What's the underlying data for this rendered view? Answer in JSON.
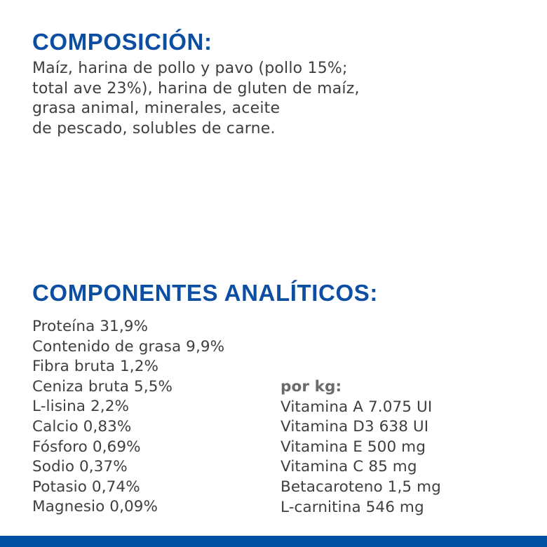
{
  "composicion": {
    "title": "COMPOSICIÓN:",
    "lines": [
      "Maíz, harina de pollo y pavo (pollo 15%;",
      "total ave 23%), harina de gluten de maíz,",
      "grasa animal, minerales, aceite",
      "de pescado, solubles de carne."
    ]
  },
  "componentes": {
    "title": "COMPONENTES ANALÍTICOS:",
    "items": [
      "Proteína 31,9%",
      "Contenido de grasa 9,9%",
      "Fibra bruta 1,2%",
      "Ceniza bruta 5,5%",
      "L-lisina 2,2%",
      "Calcio 0,83%",
      "Fósforo 0,69%",
      "Sodio 0,37%",
      "Potasio 0,74%",
      "Magnesio 0,09%"
    ],
    "per_kg_label": "por kg:",
    "per_kg_items": [
      "Vitamina A 7.075 UI",
      "Vitamina D3 638 UI",
      "Vitamina E 500 mg",
      "Vitamina C 85 mg",
      "Betacaroteno 1,5 mg",
      "L-carnitina 546 mg"
    ]
  },
  "colors": {
    "heading": "#0b4ea2",
    "text": "#3f3f3f",
    "footer_bar": "#0051a5"
  }
}
